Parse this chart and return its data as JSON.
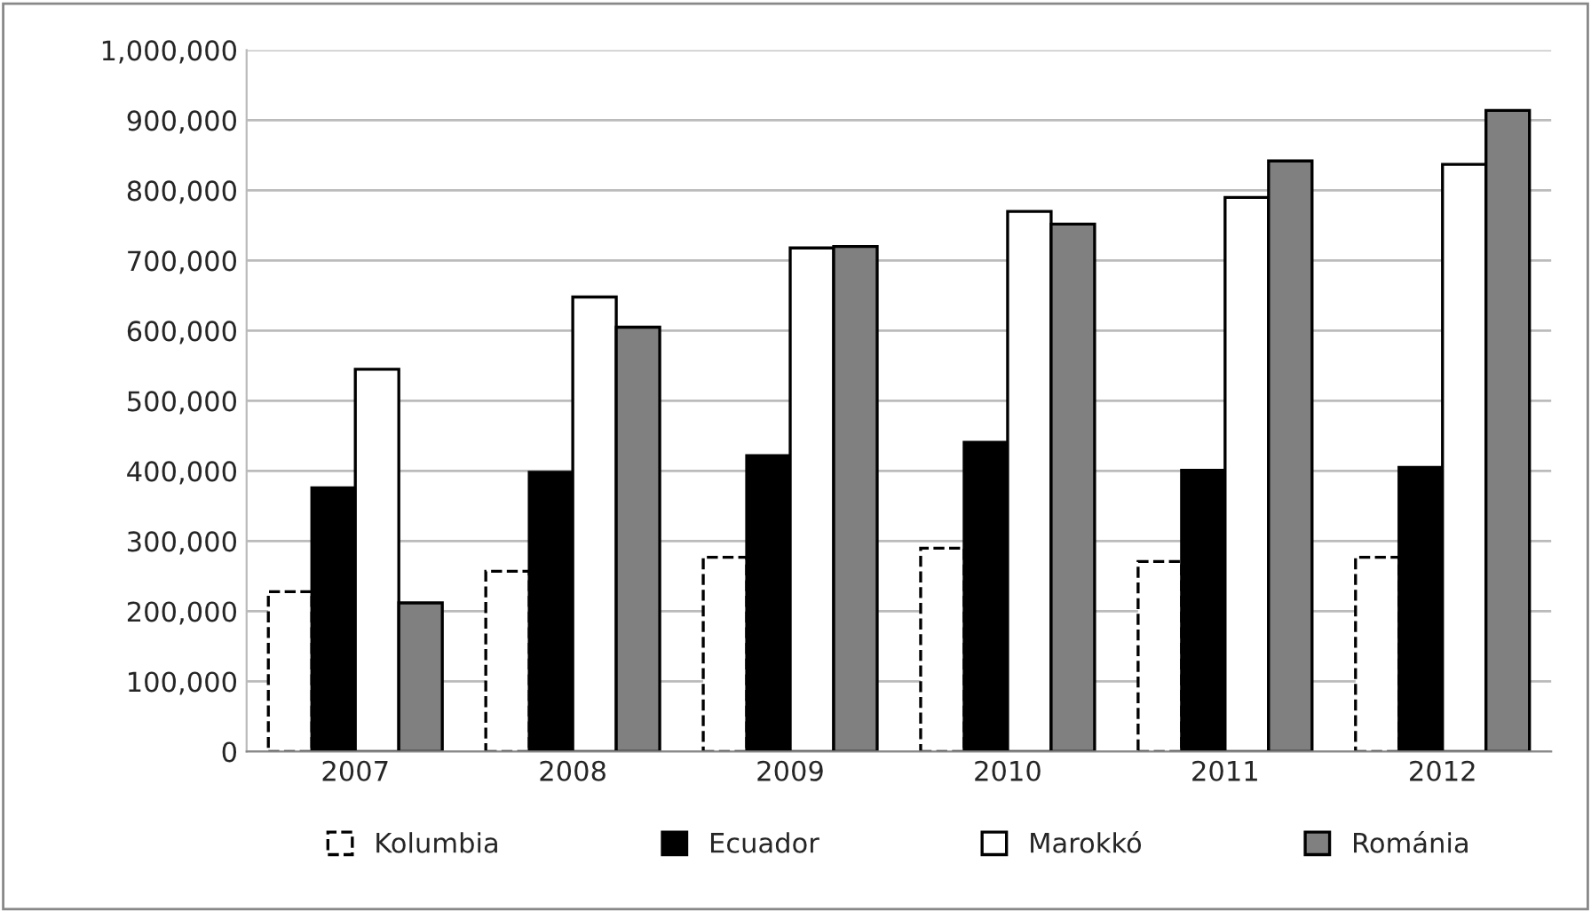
{
  "chart_data": {
    "type": "bar",
    "categories": [
      "2007",
      "2008",
      "2009",
      "2010",
      "2011",
      "2012"
    ],
    "series": [
      {
        "name": "Kolumbia",
        "color": "#ffffff",
        "values": [
          228000,
          257000,
          277000,
          290000,
          271000,
          277000
        ]
      },
      {
        "name": "Ecuador",
        "color": "#000000",
        "values": [
          376000,
          398000,
          422000,
          441000,
          401000,
          405000
        ]
      },
      {
        "name": "Marokkó",
        "color": "#ffffff",
        "values": [
          545000,
          648000,
          718000,
          770000,
          790000,
          837000
        ]
      },
      {
        "name": "Románia",
        "color": "#808080",
        "values": [
          212000,
          605000,
          720000,
          752000,
          842000,
          914000
        ]
      }
    ],
    "ylim": [
      0,
      1000000
    ],
    "yticks": [
      0,
      {
        "value": 100000,
        "label": "100,000"
      },
      {
        "value": 200000,
        "label": "200,000"
      },
      {
        "value": 300000,
        "label": "300,000"
      },
      {
        "value": 400000,
        "label": "400,000"
      },
      {
        "value": 500000,
        "label": "500,000"
      },
      {
        "value": 600000,
        "label": "600,000"
      },
      {
        "value": 700000,
        "label": "700,000"
      },
      {
        "value": 800000,
        "label": "800,000"
      },
      {
        "value": 900000,
        "label": "900,000"
      },
      {
        "value": 1000000,
        "label": "1,000,000"
      }
    ],
    "grid": "y",
    "legend": "bottom"
  }
}
